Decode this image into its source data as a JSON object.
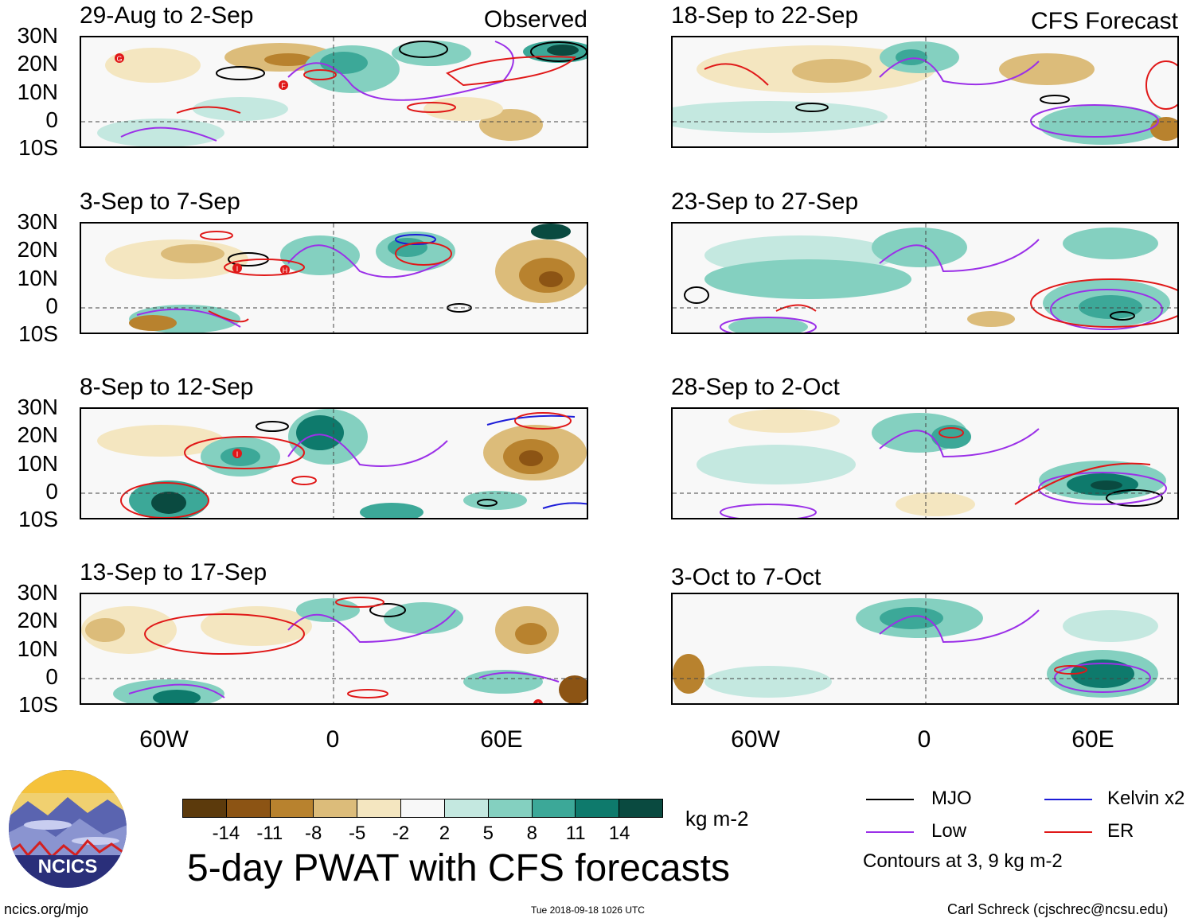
{
  "figure_title": "5-day PWAT with CFS forecasts",
  "units_label": "kg m-2",
  "observed_tag": "Observed",
  "forecast_tag": "CFS Forecast",
  "footer": {
    "left": "ncics.org/mjo",
    "center": "Tue 2018-09-18 1026 UTC",
    "right": "Carl Schreck (cjschrec@ncsu.edu)"
  },
  "logo_text": "NCICS",
  "legend": {
    "items": [
      {
        "label": "MJO",
        "color": "#000000"
      },
      {
        "label": "Kelvin x2",
        "color": "#1c1cd8"
      },
      {
        "label": "Low",
        "color": "#9b30e8"
      },
      {
        "label": "ER",
        "color": "#e01818"
      }
    ],
    "note": "Contours at 3, 9 kg m-2"
  },
  "colorbar": {
    "colors": [
      "#5c3a0c",
      "#8c5414",
      "#b8822e",
      "#dcbc7a",
      "#f4e6c0",
      "#f8f8f8",
      "#c4e8e0",
      "#84d0c0",
      "#3ca898",
      "#0e7a6c",
      "#0a4a40"
    ],
    "ticks": [
      "-14",
      "-11",
      "-8",
      "-5",
      "-2",
      "2",
      "5",
      "8",
      "11",
      "14"
    ]
  },
  "chart_data": {
    "type": "heatmap",
    "variable": "5-day precipitable water anomaly (PWAT)",
    "units": "kg m-2",
    "lat_ticks": [
      "30N",
      "20N",
      "10N",
      "0",
      "10S"
    ],
    "lon_ticks": [
      "60W",
      "0",
      "60E"
    ],
    "panels": [
      {
        "period": "29-Aug to 2-Sep",
        "column": "Observed"
      },
      {
        "period": "3-Sep to 7-Sep",
        "column": "Observed"
      },
      {
        "period": "8-Sep to 12-Sep",
        "column": "Observed"
      },
      {
        "period": "13-Sep to 17-Sep",
        "column": "Observed"
      },
      {
        "period": "18-Sep to 22-Sep",
        "column": "CFS Forecast"
      },
      {
        "period": "23-Sep to 27-Sep",
        "column": "CFS Forecast"
      },
      {
        "period": "28-Sep to 2-Oct",
        "column": "CFS Forecast"
      },
      {
        "period": "3-Oct to 7-Oct",
        "column": "CFS Forecast"
      }
    ],
    "storm_markers": [
      "G",
      "F",
      "I",
      "H",
      "I",
      "I"
    ]
  }
}
